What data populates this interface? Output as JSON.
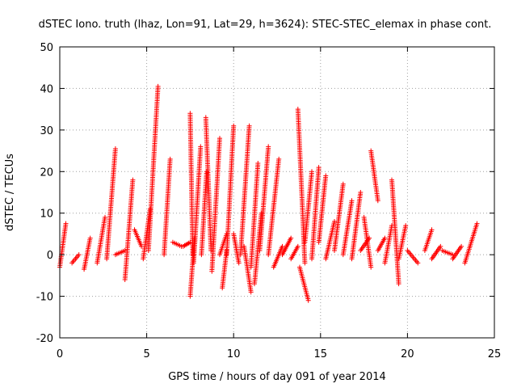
{
  "chart_data": {
    "type": "scatter",
    "title": "dSTEC Iono. truth (lhaz, Lon=91, Lat=29, h=3624): STEC-STEC_elemax in phase cont.",
    "xlabel": "GPS time / hours of day 091 of year 2014",
    "ylabel": "dSTEC  / TECUs",
    "xlim": [
      0,
      25
    ],
    "ylim": [
      -20,
      50
    ],
    "xticks": [
      0,
      5,
      10,
      15,
      20,
      25
    ],
    "yticks": [
      -20,
      -10,
      0,
      10,
      20,
      30,
      40,
      50
    ],
    "grid": true,
    "marker": "+",
    "series": [
      {
        "color": "#ff0000",
        "arcs": [
          {
            "x": [
              0.0,
              0.35
            ],
            "y": [
              -3,
              7.5
            ]
          },
          {
            "x": [
              0.7,
              1.1
            ],
            "y": [
              -2,
              0
            ]
          },
          {
            "x": [
              1.4,
              1.75
            ],
            "y": [
              -3.5,
              4
            ]
          },
          {
            "x": [
              2.15,
              2.6
            ],
            "y": [
              -2,
              9
            ]
          },
          {
            "x": [
              2.7,
              3.2
            ],
            "y": [
              -1,
              25.5
            ]
          },
          {
            "x": [
              3.2,
              3.75
            ],
            "y": [
              0,
              1
            ]
          },
          {
            "x": [
              3.75,
              4.2
            ],
            "y": [
              -6,
              18
            ]
          },
          {
            "x": [
              4.3,
              4.7
            ],
            "y": [
              6,
              2
            ]
          },
          {
            "x": [
              4.8,
              5.2
            ],
            "y": [
              -1,
              11
            ]
          },
          {
            "x": [
              5.1,
              5.65
            ],
            "y": [
              1,
              40.5
            ]
          },
          {
            "x": [
              6.0,
              6.35
            ],
            "y": [
              0,
              23
            ]
          },
          {
            "x": [
              6.5,
              7.0
            ],
            "y": [
              3,
              2
            ]
          },
          {
            "x": [
              7.1,
              7.5
            ],
            "y": [
              2,
              3
            ]
          },
          {
            "x": [
              7.5,
              7.65
            ],
            "y": [
              34,
              0
            ]
          },
          {
            "x": [
              7.5,
              7.75
            ],
            "y": [
              -10,
              4
            ]
          },
          {
            "x": [
              7.7,
              8.1
            ],
            "y": [
              -2,
              26
            ]
          },
          {
            "x": [
              8.15,
              8.45
            ],
            "y": [
              0,
              20
            ]
          },
          {
            "x": [
              8.4,
              8.7
            ],
            "y": [
              33,
              1
            ]
          },
          {
            "x": [
              8.75,
              9.2
            ],
            "y": [
              -4,
              28
            ]
          },
          {
            "x": [
              9.2,
              9.6
            ],
            "y": [
              0,
              5
            ]
          },
          {
            "x": [
              9.35,
              9.6
            ],
            "y": [
              -8,
              1
            ]
          },
          {
            "x": [
              9.6,
              10.0
            ],
            "y": [
              0,
              31
            ]
          },
          {
            "x": [
              10.0,
              10.3
            ],
            "y": [
              5,
              -2
            ]
          },
          {
            "x": [
              10.4,
              10.9
            ],
            "y": [
              0,
              31
            ]
          },
          {
            "x": [
              10.6,
              11.0
            ],
            "y": [
              2,
              -9
            ]
          },
          {
            "x": [
              11.0,
              11.4
            ],
            "y": [
              -3,
              22
            ]
          },
          {
            "x": [
              11.2,
              11.6
            ],
            "y": [
              -7,
              10
            ]
          },
          {
            "x": [
              11.5,
              12.0
            ],
            "y": [
              1,
              26
            ]
          },
          {
            "x": [
              12.0,
              12.6
            ],
            "y": [
              0,
              23
            ]
          },
          {
            "x": [
              12.3,
              12.8
            ],
            "y": [
              -3,
              2
            ]
          },
          {
            "x": [
              12.8,
              13.3
            ],
            "y": [
              0,
              4
            ]
          },
          {
            "x": [
              13.3,
              13.7
            ],
            "y": [
              -1,
              2
            ]
          },
          {
            "x": [
              13.7,
              14.1
            ],
            "y": [
              35,
              -2
            ]
          },
          {
            "x": [
              13.8,
              14.3
            ],
            "y": [
              -3,
              -11
            ]
          },
          {
            "x": [
              14.1,
              14.5
            ],
            "y": [
              3,
              20
            ]
          },
          {
            "x": [
              14.5,
              14.9
            ],
            "y": [
              -1,
              21
            ]
          },
          {
            "x": [
              14.9,
              15.3
            ],
            "y": [
              3,
              19
            ]
          },
          {
            "x": [
              15.3,
              15.8
            ],
            "y": [
              -1,
              8
            ]
          },
          {
            "x": [
              15.8,
              16.3
            ],
            "y": [
              1,
              17
            ]
          },
          {
            "x": [
              16.3,
              16.8
            ],
            "y": [
              0,
              13
            ]
          },
          {
            "x": [
              16.8,
              17.3
            ],
            "y": [
              -1,
              15
            ]
          },
          {
            "x": [
              17.3,
              17.8
            ],
            "y": [
              1,
              4
            ]
          },
          {
            "x": [
              17.5,
              17.9
            ],
            "y": [
              9,
              -3
            ]
          },
          {
            "x": [
              17.9,
              18.3
            ],
            "y": [
              25,
              13
            ]
          },
          {
            "x": [
              18.3,
              18.7
            ],
            "y": [
              1,
              4
            ]
          },
          {
            "x": [
              18.7,
              19.1
            ],
            "y": [
              -2,
              7
            ]
          },
          {
            "x": [
              19.1,
              19.5
            ],
            "y": [
              18,
              -7
            ]
          },
          {
            "x": [
              19.5,
              19.9
            ],
            "y": [
              -1,
              7
            ]
          },
          {
            "x": [
              20.0,
              20.6
            ],
            "y": [
              1,
              -2
            ]
          },
          {
            "x": [
              21.0,
              21.4
            ],
            "y": [
              1,
              6
            ]
          },
          {
            "x": [
              21.4,
              21.9
            ],
            "y": [
              -1,
              2
            ]
          },
          {
            "x": [
              22.0,
              22.6
            ],
            "y": [
              1,
              0
            ]
          },
          {
            "x": [
              22.6,
              23.1
            ],
            "y": [
              -1,
              2
            ]
          },
          {
            "x": [
              23.3,
              24.0
            ],
            "y": [
              -2,
              7.5
            ]
          }
        ]
      }
    ]
  }
}
